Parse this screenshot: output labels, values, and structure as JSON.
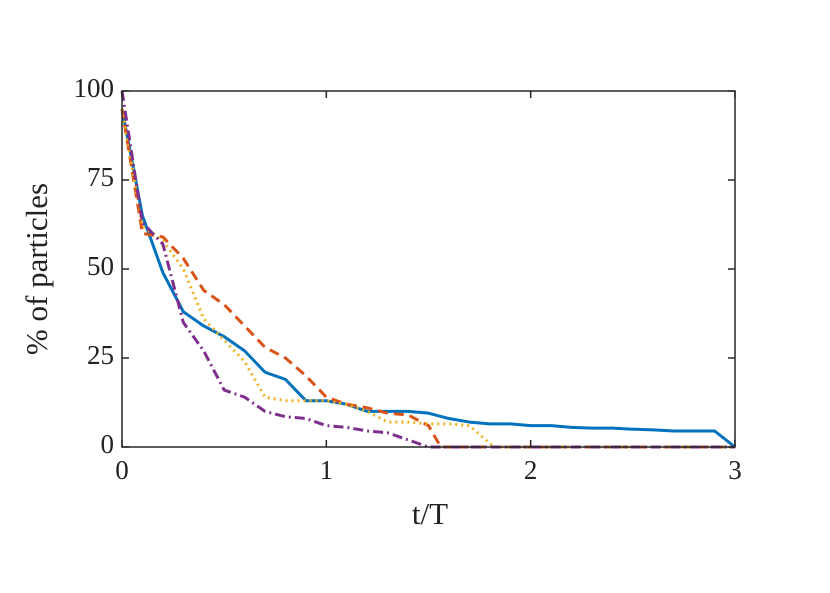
{
  "chart_data": {
    "type": "line",
    "xlabel": "t/T",
    "ylabel": "% of particles",
    "xlim": [
      0,
      3
    ],
    "ylim": [
      0,
      100
    ],
    "xticks": [
      0,
      1,
      2,
      3
    ],
    "yticks": [
      0,
      25,
      50,
      75,
      100
    ],
    "box": true,
    "series": [
      {
        "color": "#0072BD",
        "line_style": "solid",
        "x": [
          0,
          0.1,
          0.2,
          0.3,
          0.4,
          0.5,
          0.6,
          0.7,
          0.8,
          0.9,
          1.0,
          1.1,
          1.2,
          1.3,
          1.4,
          1.5,
          1.6,
          1.7,
          1.8,
          1.9,
          2.0,
          2.1,
          2.2,
          2.3,
          2.4,
          2.5,
          2.6,
          2.7,
          2.8,
          2.9,
          3.0
        ],
        "values": [
          95,
          65,
          49,
          38,
          34,
          31,
          27,
          21,
          19,
          13,
          13,
          12,
          10,
          10,
          10,
          9.5,
          8,
          7,
          6.5,
          6.5,
          6,
          6,
          5.5,
          5.3,
          5.3,
          5,
          4.8,
          4.5,
          4.5,
          4.5,
          0
        ]
      },
      {
        "color": "#D95319",
        "line_style": "dashed",
        "x": [
          0,
          0.1,
          0.2,
          0.3,
          0.4,
          0.5,
          0.6,
          0.7,
          0.8,
          0.9,
          1.0,
          1.1,
          1.2,
          1.3,
          1.4,
          1.5,
          1.56,
          3.0
        ],
        "values": [
          95,
          60,
          59,
          53,
          44,
          40,
          34,
          28,
          25,
          20,
          14,
          12,
          11,
          9.5,
          9,
          6,
          0,
          0
        ]
      },
      {
        "color": "#EDB120",
        "line_style": "dotted",
        "x": [
          0,
          0.1,
          0.2,
          0.3,
          0.4,
          0.5,
          0.6,
          0.7,
          0.8,
          0.9,
          1.0,
          1.1,
          1.2,
          1.3,
          1.4,
          1.5,
          1.6,
          1.7,
          1.82,
          3.0
        ],
        "values": [
          95,
          62,
          58,
          50,
          36,
          30,
          24,
          14,
          13,
          13,
          13,
          12,
          10,
          7,
          7,
          6.5,
          6.5,
          6,
          0,
          0
        ]
      },
      {
        "color": "#7E2F8E",
        "line_style": "dashdot",
        "x": [
          0,
          0.1,
          0.2,
          0.3,
          0.4,
          0.5,
          0.6,
          0.7,
          0.8,
          0.9,
          1.0,
          1.1,
          1.2,
          1.3,
          1.4,
          1.5,
          3.0
        ],
        "values": [
          100,
          63,
          57,
          35,
          27,
          16,
          14,
          10,
          8.5,
          8,
          6,
          5.5,
          4.5,
          4,
          2,
          0,
          0
        ]
      }
    ]
  }
}
